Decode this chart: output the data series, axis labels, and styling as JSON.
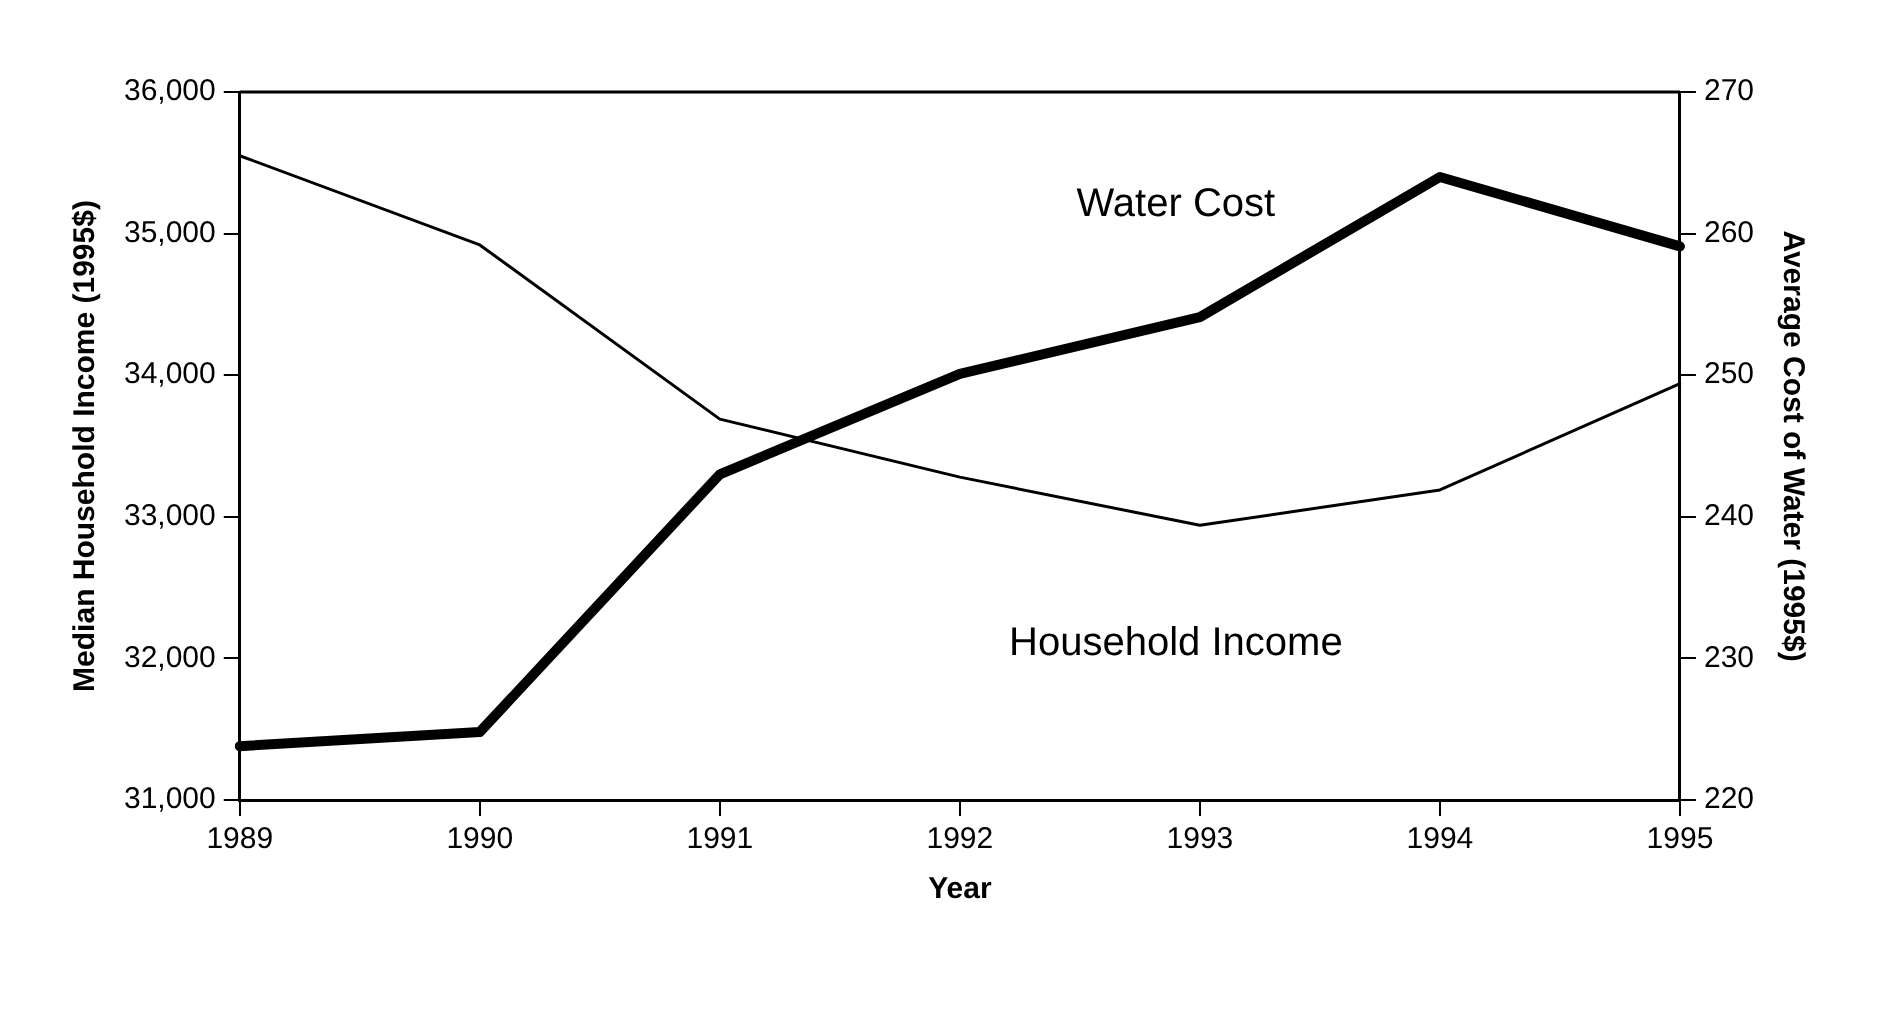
{
  "chart_data": {
    "type": "line",
    "xlabel": "Year",
    "ylabel": "Median Household Income (1995$)",
    "y2label": "Average Cost of Water (1995$)",
    "categories": [
      "1989",
      "1990",
      "1991",
      "1992",
      "1993",
      "1994",
      "1995"
    ],
    "series": [
      {
        "name": "Household Income",
        "color": "#000000",
        "axis": "y",
        "values": [
          35550,
          34920,
          33690,
          33280,
          32940,
          33190,
          33940
        ]
      },
      {
        "name": "Water Cost",
        "color": "#000000",
        "axis": "y2",
        "values": [
          223.8,
          224.8,
          243,
          250.1,
          254.1,
          264,
          259.1
        ]
      }
    ],
    "ylim": [
      31000,
      36000
    ],
    "yticks": [
      {
        "value": 31000,
        "label": "31,000"
      },
      {
        "value": 32000,
        "label": "32,000"
      },
      {
        "value": 33000,
        "label": "33,000"
      },
      {
        "value": 34000,
        "label": "34,000"
      },
      {
        "value": 35000,
        "label": "35,000"
      },
      {
        "value": 36000,
        "label": "36,000"
      }
    ],
    "y2lim": [
      220,
      270
    ],
    "y2ticks": [
      220,
      230,
      240,
      250,
      260,
      270
    ],
    "grid": false,
    "legend": false,
    "marker": "none",
    "line_style": "solid"
  }
}
